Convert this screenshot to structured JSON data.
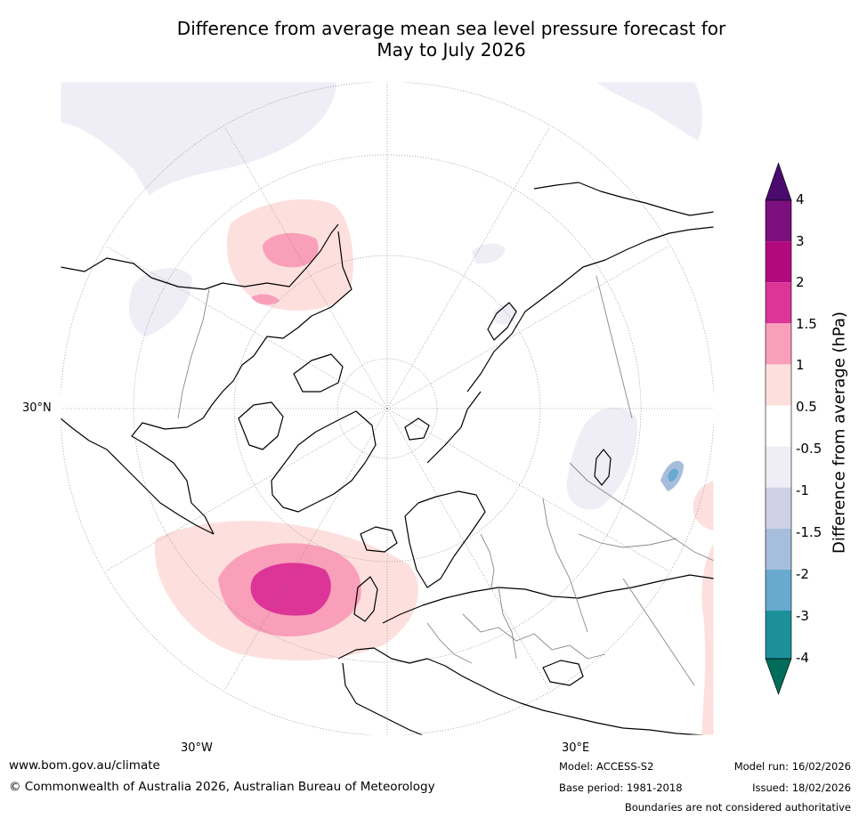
{
  "title": {
    "line1": "Difference from average mean sea level pressure forecast for",
    "line2": "May to July 2026"
  },
  "map": {
    "lat_label": "30°N",
    "lon_labels": [
      "30°W",
      "30°E"
    ]
  },
  "colorbar": {
    "title": "Difference from average (hPa)",
    "labels": [
      "4",
      "3",
      "2",
      "1.5",
      "1",
      "0.5",
      "-0.5",
      "-1",
      "-1.5",
      "-2",
      "-3",
      "-4"
    ],
    "colors": {
      "above_4": "#4a0a6e",
      "3_to_4": "#7c0f7e",
      "2_to_3": "#b3097f",
      "1.5_to_2": "#dd3497",
      "1_to_1.5": "#f99fba",
      "0.5_to_1": "#fde0dd",
      "neutral": "#ffffff",
      "-1_to_-0.5": "#efedf5",
      "-1.5_to_-1": "#cfd0e5",
      "-2_to_-1.5": "#a6bddb",
      "-3_to_-2": "#67a9cf",
      "-4_to_-3": "#1c9099",
      "below_-4": "#016c59"
    }
  },
  "footer": {
    "website": "www.bom.gov.au/climate",
    "copyright": "© Commonwealth of Australia 2026, Australian Bureau of Meteorology",
    "model": "Model: ACCESS-S2",
    "base_period": "Base period: 1981-2018",
    "model_run": "Model run: 16/02/2026",
    "issued": "Issued: 18/02/2026",
    "disclaimer": "Boundaries are not considered authoritative"
  }
}
